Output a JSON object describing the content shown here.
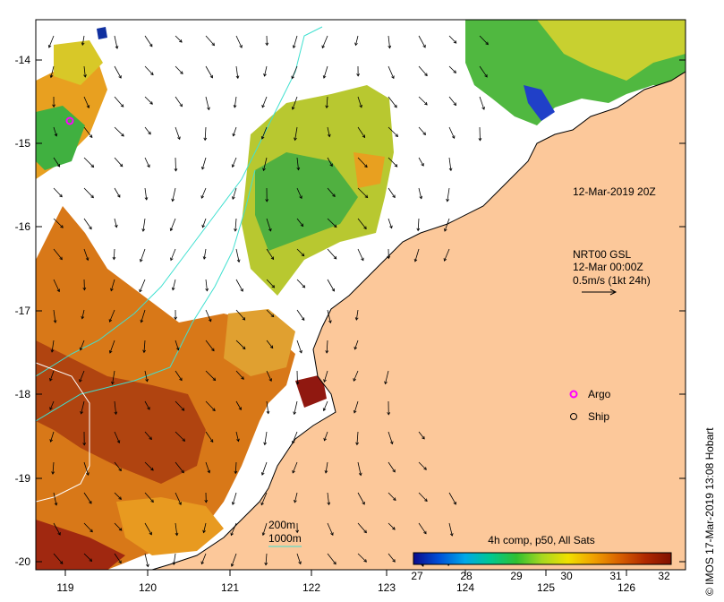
{
  "map": {
    "date_label": "12-Mar-2019 20Z",
    "credit": "© IMOS 17-Mar-2019 13:08 Hobart",
    "x_ticks": [
      "119",
      "120",
      "121",
      "122",
      "123",
      "124",
      "125",
      "126"
    ],
    "y_ticks": [
      "-14",
      "-15",
      "-16",
      "-17",
      "-18",
      "-19",
      "-20"
    ],
    "current": {
      "line1": "NRT00 GSL",
      "line2": "12-Mar 00:00Z",
      "line3": "0.5m/s (1kt 24h)"
    },
    "legend": {
      "argo": "Argo",
      "ship": "Ship",
      "argo_color": "#ff00ff"
    },
    "depth": {
      "d200": "200m",
      "d1000": "1000m",
      "d1000_color": "#40e0d0"
    },
    "colorbar": {
      "title": "4h comp, p50, All Sats",
      "ticks": [
        "27",
        "28",
        "29",
        "30",
        "31",
        "32"
      ],
      "colors": [
        "#0a0a8c",
        "#0050d8",
        "#00a8e8",
        "#00c890",
        "#30c030",
        "#a8d820",
        "#f0e000",
        "#f0a000",
        "#d86000",
        "#b02800",
        "#801000"
      ]
    },
    "land_color": "#fcc89a"
  }
}
